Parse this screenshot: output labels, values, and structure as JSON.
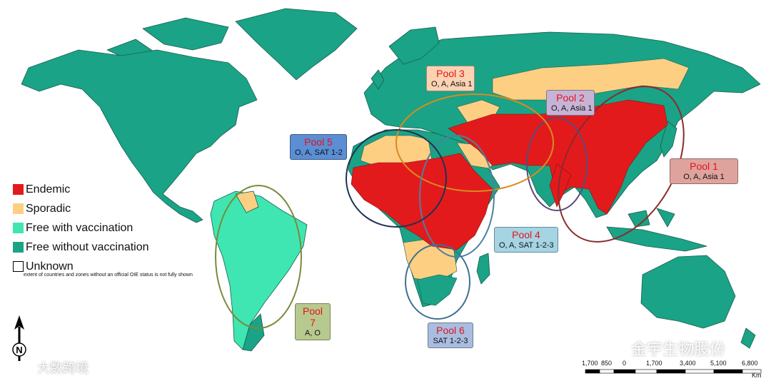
{
  "colors": {
    "endemic": "#e31a1c",
    "sporadic": "#fccf83",
    "free_with_vaccination": "#3fe6b1",
    "free_without_vaccination": "#1aa386",
    "unknown": "#ffffff",
    "border": "#1b5e4f"
  },
  "legend": {
    "items": [
      {
        "label": "Endemic",
        "color": "#e31a1c"
      },
      {
        "label": "Sporadic",
        "color": "#fccf83"
      },
      {
        "label": "Free with vaccination",
        "color": "#3fe6b1"
      },
      {
        "label": "Free without vaccination",
        "color": "#1aa386"
      },
      {
        "label": "Unknown",
        "color": "#ffffff"
      }
    ],
    "note": "extent of countries and zones without an official OIE status is not fully shown"
  },
  "pools": [
    {
      "id": "pool-1",
      "title": "Pool 1",
      "serotypes": "O, A, Asia 1",
      "box_color": "#dfa39d",
      "ring_color": "#8b2b2b"
    },
    {
      "id": "pool-2",
      "title": "Pool 2",
      "serotypes": "O, A, Asia 1",
      "box_color": "#c6b4d6",
      "ring_color": "#5a4b78"
    },
    {
      "id": "pool-3",
      "title": "Pool 3",
      "serotypes": "O, A, Asia 1",
      "box_color": "#fbd3b3",
      "ring_color": "#d98a20"
    },
    {
      "id": "pool-4",
      "title": "Pool 4",
      "serotypes": "O, A, SAT 1-2-3",
      "box_color": "#a5d4e3",
      "ring_color": "#4f7fa0"
    },
    {
      "id": "pool-5",
      "title": "Pool 5",
      "serotypes": "O, A, SAT 1-2",
      "box_color": "#5b8ed3",
      "ring_color": "#1f3350"
    },
    {
      "id": "pool-6",
      "title": "Pool 6",
      "serotypes": "SAT 1-2-3",
      "box_color": "#a9bde0",
      "ring_color": "#3f6f8f"
    },
    {
      "id": "pool-7",
      "title": "Pool 7",
      "serotypes": "A, O",
      "box_color": "#b8c98f",
      "ring_color": "#7a8a3a"
    }
  ],
  "scale_bar": {
    "labels": [
      "1,700",
      "850",
      "0",
      "1,700",
      "3,400",
      "5,100",
      "6,800"
    ],
    "unit": "Km"
  },
  "north_arrow": {
    "letter": "N"
  },
  "watermarks": {
    "left": "大数跨境",
    "right": "金宇生物股份"
  }
}
